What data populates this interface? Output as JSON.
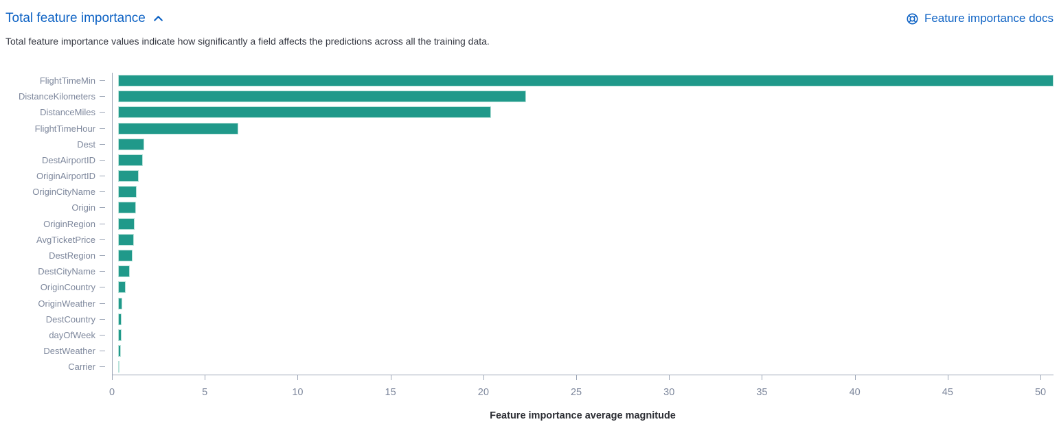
{
  "header": {
    "title": "Total feature importance",
    "collapse_icon": "chevron-up-icon",
    "docs_link_label": "Feature importance docs",
    "docs_link_icon": "lifebuoy-help-icon"
  },
  "description": "Total feature importance values indicate how significantly a field affects the predictions across all the training data.",
  "colors": {
    "link_blue": "#0d62c4",
    "bar_fill": "#20998a",
    "bar_border": "#b9e2da",
    "axis_line": "#9aa4b5",
    "y_label_text": "#7d879c",
    "x_tick_text": "#7d879c",
    "description_text": "#343741",
    "axis_title_text": "#2b2d33"
  },
  "chart_data": {
    "type": "bar",
    "orientation": "horizontal",
    "title": "Total feature importance",
    "xlabel": "Feature importance average magnitude",
    "ylabel": "",
    "categories": [
      "FlightTimeMin",
      "DistanceKilometers",
      "DistanceMiles",
      "FlightTimeHour",
      "Dest",
      "DestAirportID",
      "OriginAirportID",
      "OriginCityName",
      "Origin",
      "OriginRegion",
      "AvgTicketPrice",
      "DestRegion",
      "DestCityName",
      "OriginCountry",
      "OriginWeather",
      "DestCountry",
      "dayOfWeek",
      "DestWeather",
      "Carrier"
    ],
    "values": [
      50.7,
      22.1,
      20.2,
      6.5,
      1.4,
      1.35,
      1.1,
      1.0,
      0.95,
      0.9,
      0.87,
      0.78,
      0.62,
      0.41,
      0.21,
      0.18,
      0.17,
      0.14,
      0.07
    ],
    "xlim": [
      0,
      50.7
    ],
    "xticks": [
      0,
      5,
      10,
      15,
      20,
      25,
      30,
      35,
      40,
      45,
      50
    ],
    "grid": false,
    "legend": false
  }
}
